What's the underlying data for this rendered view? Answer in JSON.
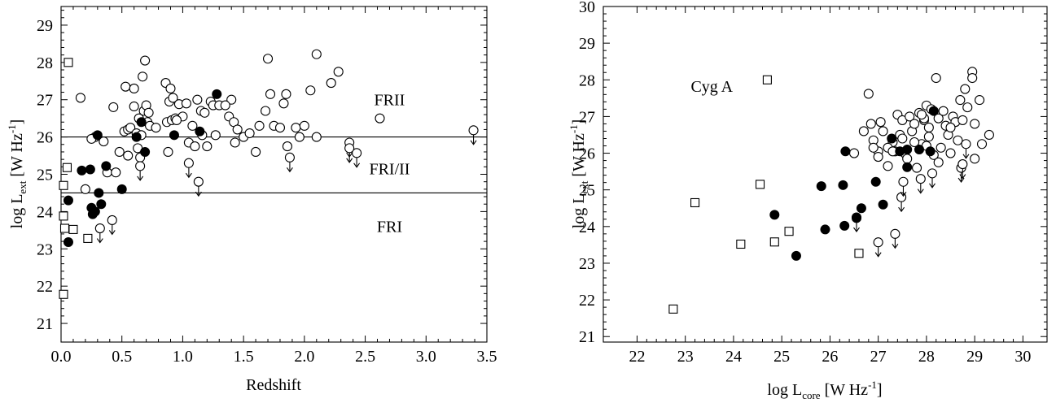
{
  "chart_data": [
    {
      "type": "scatter",
      "title": "",
      "xlabel": "Redshift",
      "ylabel": {
        "main": "log L",
        "sub": "ext",
        "unit_pre": " [W Hz",
        "exp": "-1",
        "unit_post": "]"
      },
      "xlim": [
        0,
        3.5
      ],
      "ylim": [
        20.5,
        29.5
      ],
      "xticks": [
        "0.0",
        "0.5",
        "1.0",
        "1.5",
        "2.0",
        "2.5",
        "3.0",
        "3.5"
      ],
      "yticks": [
        "21",
        "22",
        "23",
        "24",
        "25",
        "26",
        "27",
        "28",
        "29"
      ],
      "hlines": [
        26.0,
        24.5
      ],
      "annotations": [
        {
          "text": "FRII",
          "x": 2.7,
          "y": 27.0
        },
        {
          "text": "FRI/II",
          "x": 2.7,
          "y": 25.15
        },
        {
          "text": "FRI",
          "x": 2.7,
          "y": 23.6
        }
      ],
      "series": [
        {
          "marker": "open-circle",
          "points": [
            [
              0.16,
              27.05
            ],
            [
              0.28,
              26.0
            ],
            [
              0.35,
              25.88
            ],
            [
              0.38,
              25.05
            ],
            [
              0.43,
              26.8
            ],
            [
              0.48,
              25.6
            ],
            [
              0.52,
              26.15
            ],
            [
              0.53,
              27.35
            ],
            [
              0.55,
              26.2
            ],
            [
              0.55,
              25.5
            ],
            [
              0.57,
              26.25
            ],
            [
              0.6,
              27.3
            ],
            [
              0.6,
              26.82
            ],
            [
              0.62,
              26.1
            ],
            [
              0.63,
              25.7
            ],
            [
              0.64,
              26.5
            ],
            [
              0.65,
              25.45
            ],
            [
              0.66,
              26.05
            ],
            [
              0.67,
              27.62
            ],
            [
              0.68,
              26.7
            ],
            [
              0.69,
              28.05
            ],
            [
              0.7,
              26.85
            ],
            [
              0.71,
              26.4
            ],
            [
              0.72,
              26.65
            ],
            [
              0.73,
              26.3
            ],
            [
              0.78,
              26.25
            ],
            [
              0.86,
              27.45
            ],
            [
              0.87,
              26.4
            ],
            [
              0.88,
              25.6
            ],
            [
              0.89,
              26.95
            ],
            [
              0.9,
              27.3
            ],
            [
              0.91,
              26.45
            ],
            [
              0.92,
              27.05
            ],
            [
              0.94,
              26.5
            ],
            [
              0.97,
              26.88
            ],
            [
              1.0,
              26.55
            ],
            [
              1.03,
              26.9
            ],
            [
              1.05,
              25.85
            ],
            [
              1.08,
              26.3
            ],
            [
              1.1,
              25.75
            ],
            [
              1.12,
              27.0
            ],
            [
              1.15,
              26.7
            ],
            [
              1.18,
              26.65
            ],
            [
              1.2,
              25.75
            ],
            [
              1.23,
              26.95
            ],
            [
              1.25,
              26.85
            ],
            [
              1.27,
              26.05
            ],
            [
              1.3,
              26.85
            ],
            [
              1.38,
              26.55
            ],
            [
              1.4,
              27.0
            ],
            [
              1.42,
              26.4
            ],
            [
              1.43,
              25.85
            ],
            [
              1.45,
              26.2
            ],
            [
              1.5,
              26.0
            ],
            [
              1.55,
              26.1
            ],
            [
              1.6,
              25.6
            ],
            [
              1.63,
              26.3
            ],
            [
              1.68,
              26.7
            ],
            [
              1.7,
              28.1
            ],
            [
              1.72,
              27.15
            ],
            [
              1.75,
              26.3
            ],
            [
              1.8,
              26.25
            ],
            [
              1.83,
              26.9
            ],
            [
              1.85,
              27.15
            ],
            [
              1.86,
              25.75
            ],
            [
              1.93,
              26.25
            ],
            [
              1.96,
              26.0
            ],
            [
              2.0,
              26.3
            ],
            [
              2.05,
              27.25
            ],
            [
              2.1,
              28.22
            ],
            [
              2.1,
              26.0
            ],
            [
              2.22,
              27.45
            ],
            [
              2.28,
              27.75
            ],
            [
              2.62,
              26.5
            ],
            [
              0.25,
              25.95
            ],
            [
              0.45,
              25.05
            ],
            [
              0.2,
              24.6
            ],
            [
              1.35,
              26.85
            ],
            [
              0.95,
              26.45
            ],
            [
              1.16,
              26.05
            ]
          ]
        },
        {
          "marker": "open-circle-upper-limit",
          "points": [
            [
              0.65,
              25.22
            ],
            [
              1.05,
              25.3
            ],
            [
              1.13,
              24.8
            ],
            [
              1.88,
              25.45
            ],
            [
              2.37,
              25.85
            ],
            [
              2.43,
              25.57
            ],
            [
              3.39,
              26.18
            ],
            [
              0.32,
              23.55
            ],
            [
              0.42,
              23.77
            ],
            [
              2.37,
              25.7
            ]
          ]
        },
        {
          "marker": "filled-circle",
          "points": [
            [
              0.06,
              24.3
            ],
            [
              0.06,
              23.18
            ],
            [
              0.17,
              25.1
            ],
            [
              0.24,
              25.13
            ],
            [
              0.25,
              24.1
            ],
            [
              0.26,
              23.93
            ],
            [
              0.28,
              24.0
            ],
            [
              0.3,
              26.05
            ],
            [
              0.31,
              24.5
            ],
            [
              0.33,
              24.2
            ],
            [
              0.37,
              25.22
            ],
            [
              0.5,
              24.6
            ],
            [
              0.62,
              26.0
            ],
            [
              0.66,
              26.4
            ],
            [
              0.69,
              25.6
            ],
            [
              0.93,
              26.05
            ],
            [
              1.14,
              26.15
            ],
            [
              1.28,
              27.15
            ]
          ]
        },
        {
          "marker": "open-square",
          "points": [
            [
              0.06,
              28.0
            ],
            [
              0.05,
              25.18
            ],
            [
              0.02,
              24.7
            ],
            [
              0.02,
              23.88
            ],
            [
              0.03,
              23.55
            ],
            [
              0.1,
              23.52
            ],
            [
              0.22,
              23.28
            ],
            [
              0.02,
              21.78
            ]
          ]
        }
      ]
    },
    {
      "type": "scatter",
      "title": "",
      "xlabel": {
        "main": "log L",
        "sub": "core",
        "unit_pre": " [W Hz",
        "exp": "-1",
        "unit_post": "]"
      },
      "ylabel": {
        "main": "log L",
        "sub": "ext",
        "unit_pre": " [W Hz",
        "exp": "-1",
        "unit_post": "]"
      },
      "xlim": [
        21.3,
        30.5
      ],
      "ylim": [
        20.85,
        30.0
      ],
      "xticks": [
        "22",
        "23",
        "24",
        "25",
        "26",
        "27",
        "28",
        "29",
        "30"
      ],
      "yticks": [
        "21",
        "22",
        "23",
        "24",
        "25",
        "26",
        "27",
        "28",
        "29",
        "30"
      ],
      "annotations": [
        {
          "text": "Cyg A",
          "x": 23.55,
          "y": 27.83
        }
      ],
      "series": [
        {
          "marker": "open-circle",
          "points": [
            [
              26.8,
              27.62
            ],
            [
              26.85,
              26.8
            ],
            [
              26.9,
              26.35
            ],
            [
              27.0,
              26.05
            ],
            [
              27.0,
              25.9
            ],
            [
              27.05,
              26.85
            ],
            [
              27.1,
              26.6
            ],
            [
              27.2,
              25.65
            ],
            [
              27.3,
              26.3
            ],
            [
              27.35,
              26.05
            ],
            [
              27.4,
              27.05
            ],
            [
              27.45,
              26.5
            ],
            [
              27.5,
              26.9
            ],
            [
              27.55,
              26.0
            ],
            [
              27.6,
              25.85
            ],
            [
              27.65,
              27.0
            ],
            [
              27.7,
              26.6
            ],
            [
              27.75,
              26.8
            ],
            [
              27.8,
              25.6
            ],
            [
              27.85,
              27.1
            ],
            [
              27.9,
              26.25
            ],
            [
              27.95,
              26.9
            ],
            [
              28.0,
              27.3
            ],
            [
              28.05,
              26.45
            ],
            [
              28.1,
              27.2
            ],
            [
              28.15,
              25.95
            ],
            [
              28.2,
              28.05
            ],
            [
              28.25,
              26.95
            ],
            [
              28.3,
              26.15
            ],
            [
              28.35,
              27.15
            ],
            [
              28.4,
              26.75
            ],
            [
              28.45,
              26.5
            ],
            [
              28.5,
              26.0
            ],
            [
              28.55,
              27.0
            ],
            [
              28.6,
              26.85
            ],
            [
              28.65,
              26.35
            ],
            [
              28.7,
              27.45
            ],
            [
              28.75,
              26.9
            ],
            [
              28.8,
              27.75
            ],
            [
              28.85,
              27.25
            ],
            [
              28.95,
              28.22
            ],
            [
              28.95,
              28.05
            ],
            [
              29.0,
              26.8
            ],
            [
              29.1,
              27.45
            ],
            [
              29.15,
              26.25
            ],
            [
              29.3,
              26.5
            ],
            [
              29.0,
              25.85
            ],
            [
              27.2,
              26.15
            ],
            [
              27.5,
              26.4
            ],
            [
              27.95,
              26.95
            ],
            [
              28.05,
              26.7
            ],
            [
              28.25,
              25.75
            ],
            [
              28.5,
              26.7
            ],
            [
              26.5,
              26.0
            ],
            [
              26.9,
              26.15
            ],
            [
              27.75,
              26.3
            ],
            [
              27.9,
              27.05
            ],
            [
              28.0,
              26.2
            ],
            [
              27.3,
              26.05
            ],
            [
              26.7,
              26.6
            ]
          ]
        },
        {
          "marker": "open-circle-upper-limit",
          "points": [
            [
              27.0,
              23.57
            ],
            [
              27.35,
              23.8
            ],
            [
              27.48,
              24.8
            ],
            [
              27.52,
              25.22
            ],
            [
              27.88,
              25.3
            ],
            [
              28.12,
              25.45
            ],
            [
              28.72,
              25.6
            ],
            [
              28.75,
              25.7
            ],
            [
              28.82,
              26.25
            ],
            [
              26.55,
              24.25
            ]
          ]
        },
        {
          "marker": "filled-circle",
          "points": [
            [
              24.85,
              24.32
            ],
            [
              25.3,
              23.2
            ],
            [
              25.82,
              25.1
            ],
            [
              25.9,
              23.92
            ],
            [
              26.27,
              25.13
            ],
            [
              26.3,
              24.02
            ],
            [
              26.32,
              26.05
            ],
            [
              26.65,
              24.5
            ],
            [
              26.55,
              24.23
            ],
            [
              26.95,
              25.22
            ],
            [
              27.1,
              24.6
            ],
            [
              27.28,
              26.4
            ],
            [
              27.45,
              26.05
            ],
            [
              27.6,
              25.62
            ],
            [
              27.6,
              26.1
            ],
            [
              28.08,
              26.05
            ],
            [
              28.15,
              27.15
            ],
            [
              27.85,
              26.1
            ]
          ]
        },
        {
          "marker": "open-square",
          "points": [
            [
              22.75,
              21.75
            ],
            [
              23.2,
              24.65
            ],
            [
              24.15,
              23.52
            ],
            [
              24.55,
              25.15
            ],
            [
              24.85,
              23.58
            ],
            [
              25.15,
              23.87
            ],
            [
              24.7,
              28.0
            ],
            [
              26.6,
              23.27
            ]
          ]
        }
      ]
    }
  ]
}
